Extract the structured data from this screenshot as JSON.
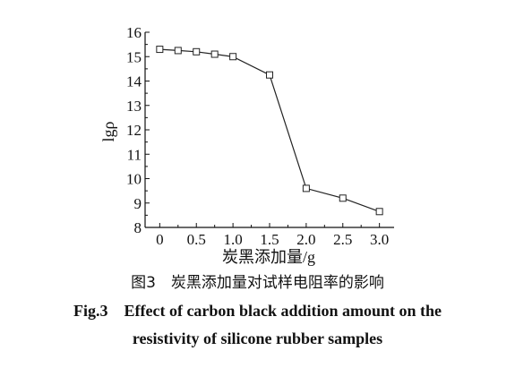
{
  "chart_data": {
    "type": "line",
    "title": "",
    "xlabel": "炭黑添加量/g",
    "ylabel": "lgρ",
    "x": [
      0,
      0.25,
      0.5,
      0.75,
      1.0,
      1.5,
      2.0,
      2.5,
      3.0
    ],
    "series": [
      {
        "values": [
          15.3,
          15.25,
          15.2,
          15.1,
          15.0,
          14.25,
          9.6,
          9.2,
          8.65
        ]
      }
    ],
    "xticks": [
      0,
      0.5,
      1.0,
      1.5,
      2.0,
      2.5,
      3.0
    ],
    "xtick_labels": [
      "0",
      "0.5",
      "1.0",
      "1.5",
      "2.0",
      "2.5",
      "3.0"
    ],
    "yticks": [
      8,
      9,
      10,
      11,
      12,
      13,
      14,
      15,
      16
    ],
    "ytick_labels": [
      "8",
      "9",
      "10",
      "11",
      "12",
      "13",
      "14",
      "15",
      "16"
    ],
    "xlim": [
      -0.2,
      3.2
    ],
    "ylim": [
      8,
      16
    ],
    "grid": false,
    "marker": "open-square",
    "colors": {
      "line": "#222222",
      "axis": "#111111"
    }
  },
  "caption": {
    "cn": "图3　炭黑添加量对试样电阻率的影响",
    "en_label": "Fig.3",
    "en_line1": "Effect of carbon black addition amount on the",
    "en_line2": "resistivity of silicone rubber samples"
  }
}
